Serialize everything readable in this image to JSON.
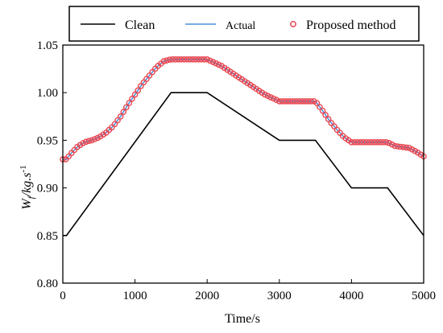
{
  "chart_data": {
    "type": "line",
    "xlabel": "Time/s",
    "ylabel": {
      "base": "W",
      "sub": "f",
      "unit": "/kg.s",
      "sup": "-1"
    },
    "xlim": [
      0,
      5000
    ],
    "ylim": [
      0.8,
      1.05
    ],
    "x_ticks": [
      "0",
      "1000",
      "2000",
      "3000",
      "4000",
      "5000"
    ],
    "y_ticks": [
      "0.80",
      "0.85",
      "0.90",
      "0.95",
      "1.00",
      "1.05"
    ],
    "grid": false,
    "legend_position": "top",
    "colors": {
      "clean": "#000000",
      "actual": "#4a90d9",
      "proposed": "#e8454f"
    },
    "series": [
      {
        "name": "Clean",
        "style": "line",
        "x": [
          0,
          50,
          1500,
          2000,
          3000,
          3500,
          4000,
          4500,
          5000
        ],
        "y": [
          0.85,
          0.85,
          1.0,
          1.0,
          0.95,
          0.95,
          0.9,
          0.9,
          0.85
        ]
      },
      {
        "name": "Actual",
        "style": "line",
        "x": [
          0,
          50,
          100,
          200,
          300,
          400,
          500,
          600,
          700,
          800,
          900,
          1000,
          1100,
          1200,
          1300,
          1400,
          1500,
          1750,
          2000,
          2200,
          2400,
          2600,
          2800,
          3000,
          3250,
          3500,
          3600,
          3700,
          3800,
          3900,
          4000,
          4250,
          4500,
          4600,
          4700,
          4800,
          4900,
          5000
        ],
        "y": [
          0.93,
          0.93,
          0.935,
          0.943,
          0.948,
          0.95,
          0.953,
          0.958,
          0.965,
          0.975,
          0.987,
          0.998,
          1.009,
          1.018,
          1.027,
          1.033,
          1.035,
          1.035,
          1.035,
          1.028,
          1.018,
          1.008,
          0.998,
          0.991,
          0.991,
          0.991,
          0.981,
          0.97,
          0.961,
          0.953,
          0.948,
          0.948,
          0.948,
          0.944,
          0.943,
          0.942,
          0.938,
          0.933
        ]
      },
      {
        "name": "Proposed method",
        "style": "markers",
        "x": [
          0,
          50,
          100,
          200,
          300,
          400,
          500,
          600,
          700,
          800,
          900,
          1000,
          1100,
          1200,
          1300,
          1400,
          1500,
          1750,
          2000,
          2200,
          2400,
          2600,
          2800,
          3000,
          3250,
          3500,
          3600,
          3700,
          3800,
          3900,
          4000,
          4250,
          4500,
          4600,
          4700,
          4800,
          4900,
          5000
        ],
        "y": [
          0.93,
          0.93,
          0.935,
          0.943,
          0.948,
          0.95,
          0.953,
          0.958,
          0.965,
          0.975,
          0.987,
          0.998,
          1.009,
          1.018,
          1.027,
          1.033,
          1.035,
          1.035,
          1.035,
          1.028,
          1.018,
          1.008,
          0.998,
          0.991,
          0.991,
          0.991,
          0.981,
          0.97,
          0.961,
          0.953,
          0.948,
          0.948,
          0.948,
          0.944,
          0.943,
          0.942,
          0.938,
          0.933
        ]
      }
    ]
  }
}
